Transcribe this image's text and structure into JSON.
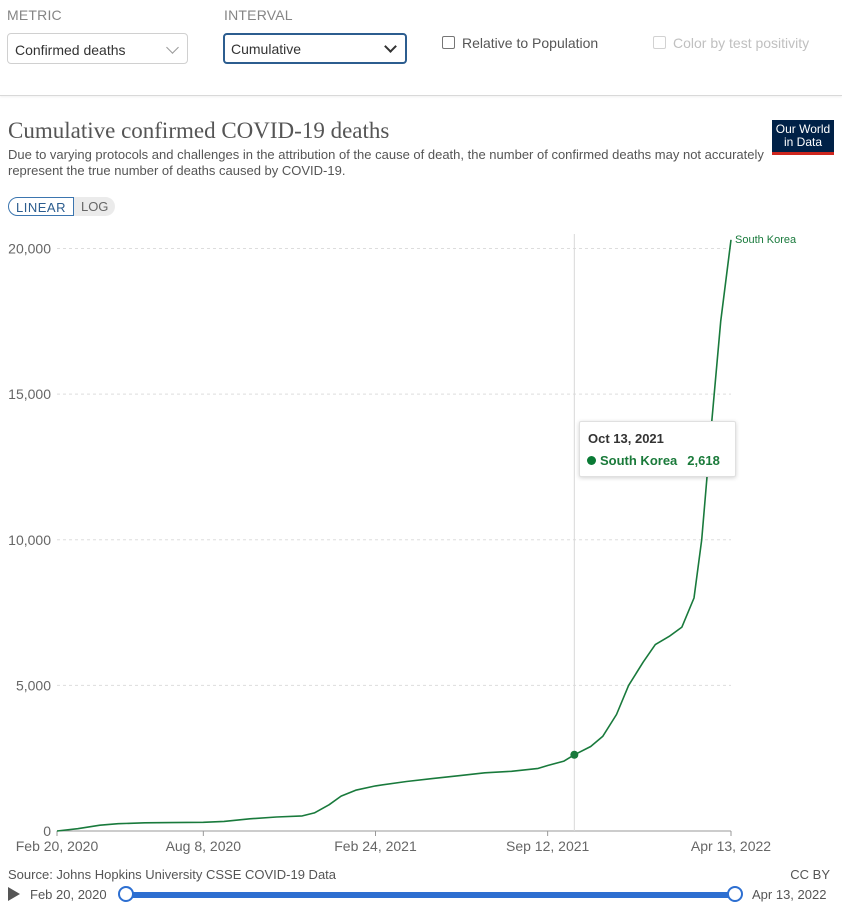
{
  "controls": {
    "metric_label": "METRIC",
    "metric_value": "Confirmed deaths",
    "interval_label": "INTERVAL",
    "interval_value": "Cumulative",
    "relative_label": "Relative to Population",
    "color_label": "Color by test positivity"
  },
  "header": {
    "title": "Cumulative confirmed COVID-19 deaths",
    "subtitle": "Due to varying protocols and challenges in the attribution of the cause of death, the number of confirmed deaths may not accurately represent the true number of deaths caused by COVID-19.",
    "logo_line1": "Our World",
    "logo_line2": "in Data",
    "scale_linear": "LINEAR",
    "scale_log": "LOG"
  },
  "tooltip": {
    "date": "Oct 13, 2021",
    "series": "South Korea",
    "value": "2,618"
  },
  "footer": {
    "source": "Source: Johns Hopkins University CSSE COVID-19 Data",
    "license": "CC BY",
    "timeline_start": "Feb 20, 2020",
    "timeline_end": "Apr 13, 2022"
  },
  "colors": {
    "line": "#197a3c",
    "grid": "#dddddd",
    "axis_text": "#666666",
    "accent": "#2d6fd1",
    "logo_bg": "#002147",
    "logo_stripe": "#ce261e"
  },
  "chart_data": {
    "type": "line",
    "title": "Cumulative confirmed COVID-19 deaths",
    "xlabel": "",
    "ylabel": "",
    "ylim": [
      0,
      20500
    ],
    "yscale": "linear",
    "grid": "horizontal dashed",
    "yticks": [
      0,
      5000,
      10000,
      15000,
      20000
    ],
    "ytick_labels": [
      "0",
      "5,000",
      "10,000",
      "15,000",
      "20,000"
    ],
    "xticks": [
      "2020-02-20",
      "2020-08-08",
      "2021-02-24",
      "2021-09-12",
      "2022-04-13"
    ],
    "xtick_labels": [
      "Feb 20, 2020",
      "Aug 8, 2020",
      "Feb 24, 2021",
      "Sep 12, 2021",
      "Apr 13, 2022"
    ],
    "xlim": [
      "2020-02-20",
      "2022-04-13"
    ],
    "hover_x": "2021-10-13",
    "series": [
      {
        "name": "South Korea",
        "x": [
          "2020-02-20",
          "2020-03-15",
          "2020-04-10",
          "2020-05-01",
          "2020-06-01",
          "2020-07-01",
          "2020-08-08",
          "2020-09-01",
          "2020-10-01",
          "2020-11-01",
          "2020-12-01",
          "2020-12-15",
          "2021-01-01",
          "2021-01-15",
          "2021-02-01",
          "2021-02-24",
          "2021-04-01",
          "2021-05-01",
          "2021-06-01",
          "2021-07-01",
          "2021-08-01",
          "2021-09-01",
          "2021-09-12",
          "2021-10-01",
          "2021-10-13",
          "2021-11-01",
          "2021-11-15",
          "2021-12-01",
          "2021-12-15",
          "2022-01-01",
          "2022-01-15",
          "2022-02-01",
          "2022-02-15",
          "2022-03-01",
          "2022-03-10",
          "2022-03-20",
          "2022-04-01",
          "2022-04-13"
        ],
        "values": [
          0,
          80,
          200,
          250,
          280,
          290,
          300,
          330,
          420,
          480,
          520,
          620,
          900,
          1200,
          1400,
          1550,
          1700,
          1800,
          1900,
          2000,
          2050,
          2150,
          2250,
          2400,
          2618,
          2900,
          3250,
          4000,
          5000,
          5800,
          6400,
          6700,
          7000,
          8000,
          10000,
          13500,
          17500,
          20300
        ]
      }
    ],
    "series_label": "South Korea"
  }
}
